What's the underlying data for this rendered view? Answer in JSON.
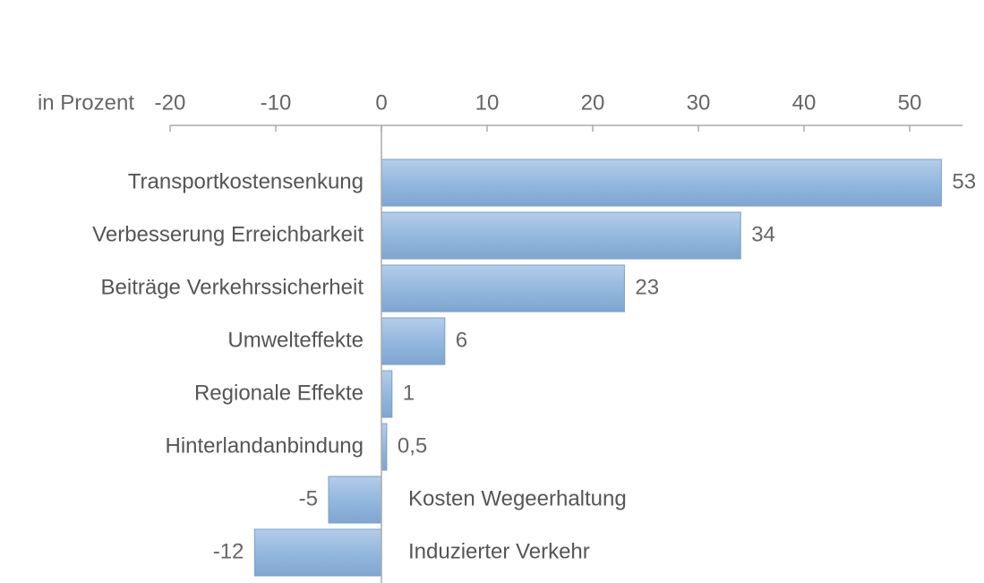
{
  "chart_data": {
    "type": "hbar",
    "axis_label": "in Prozent",
    "categories": [
      "Transportkostensenkung",
      "Verbesserung Erreichbarkeit",
      "Beiträge Verkehrssicherheit",
      "Umwelteffekte",
      "Regionale Effekte",
      "Hinterlandanbindung",
      "Kosten Wegeerhaltung",
      "Induzierter Verkehr"
    ],
    "values": [
      53,
      34,
      23,
      6,
      1,
      0.5,
      -5,
      -12
    ],
    "value_labels": [
      "53",
      "34",
      "23",
      "6",
      "1",
      "0,5",
      "-5",
      "-12"
    ],
    "color": "#94b8de",
    "xlim": [
      -20,
      55
    ],
    "xticks": [
      -20,
      -10,
      0,
      10,
      20,
      30,
      40,
      50
    ]
  }
}
